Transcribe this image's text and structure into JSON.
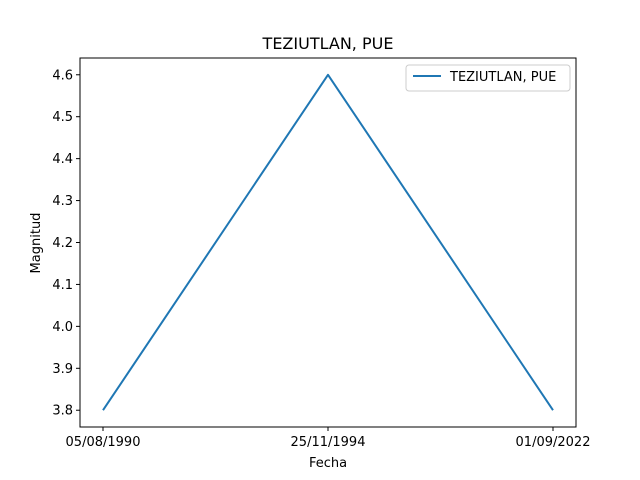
{
  "chart_data": {
    "type": "line",
    "title": "TEZIUTLAN, PUE",
    "xlabel": "Fecha",
    "ylabel": "Magnitud",
    "categories": [
      "05/08/1990",
      "25/11/1994",
      "01/09/2022"
    ],
    "series": [
      {
        "name": "TEZIUTLAN, PUE",
        "values": [
          3.8,
          4.6,
          3.8
        ],
        "color": "#1f77b4"
      }
    ],
    "ylim": [
      3.76,
      4.64
    ],
    "yticks": [
      "3.8",
      "3.9",
      "4.0",
      "4.1",
      "4.2",
      "4.3",
      "4.4",
      "4.5",
      "4.6"
    ],
    "grid": false,
    "legend_position": "upper right"
  }
}
